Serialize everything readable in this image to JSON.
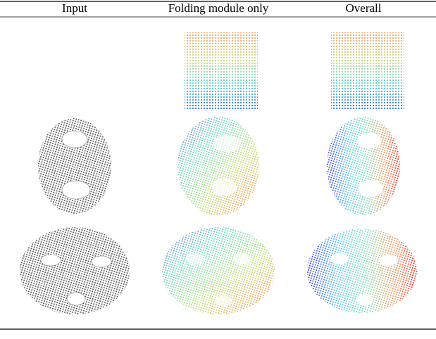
{
  "table": {
    "headers": [
      "Input",
      "Folding module only",
      "Overall"
    ]
  }
}
